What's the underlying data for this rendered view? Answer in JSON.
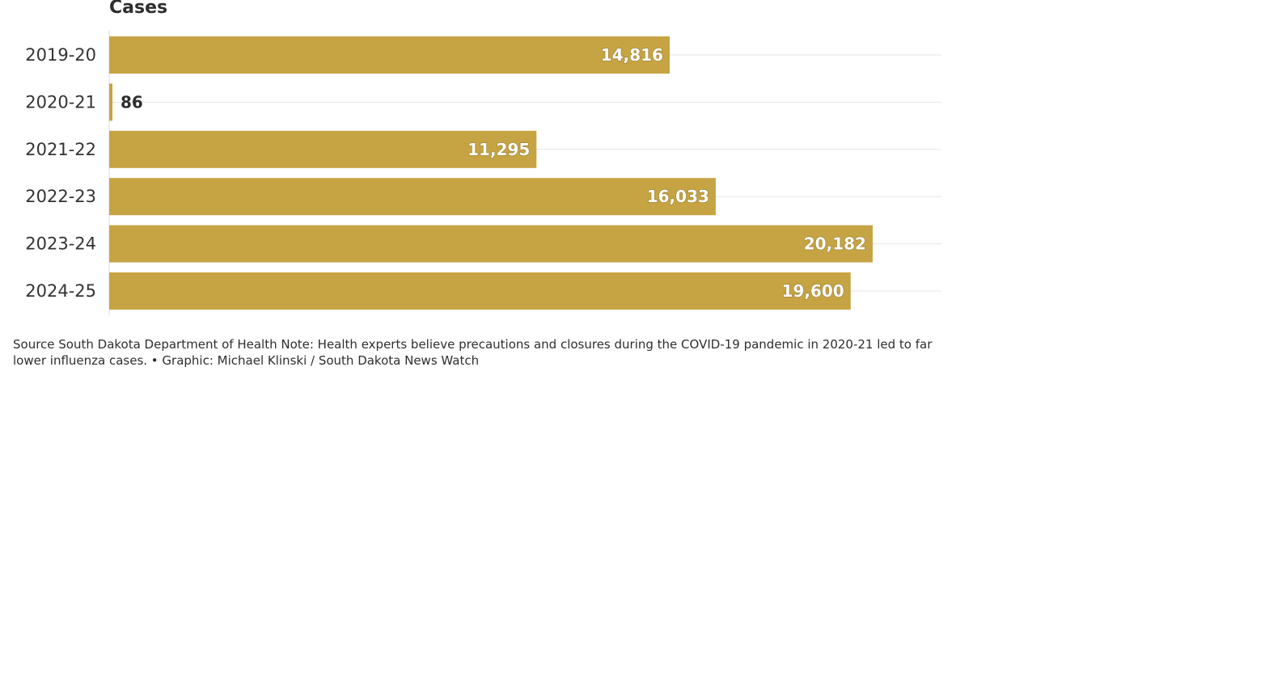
{
  "chart_data": {
    "type": "bar",
    "orientation": "horizontal",
    "column_header": "Cases",
    "categories": [
      "2019-20",
      "2020-21",
      "2021-22",
      "2022-23",
      "2023-24",
      "2024-25"
    ],
    "values": [
      14816,
      86,
      11295,
      16033,
      20182,
      19600
    ],
    "value_labels": [
      "14,816",
      "86",
      "11,295",
      "16,033",
      "20,182",
      "19,600"
    ],
    "xlim": [
      0,
      22000
    ],
    "grid": true,
    "bar_color": "#c6a444"
  },
  "footer": {
    "text": "Source South Dakota Department of Health Note: Health experts believe precautions and closures during the COVID-19 pandemic in 2020-21 led to far lower influenza cases. • Graphic: Michael Klinski / South Dakota News Watch"
  }
}
